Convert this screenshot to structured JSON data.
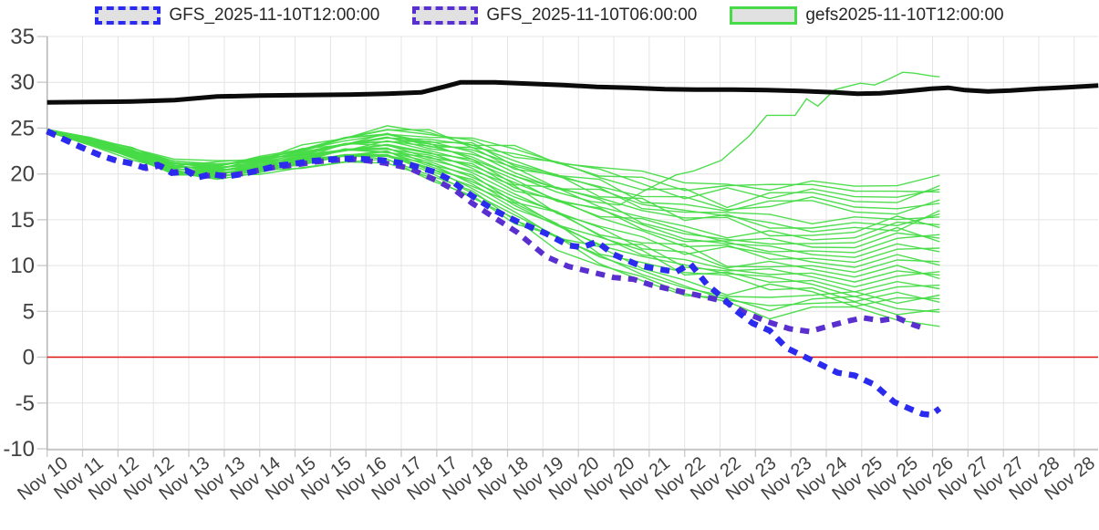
{
  "legend": {
    "items": [
      {
        "label": "GFS_2025-11-10T12:00:00",
        "swatch_style": "border:4px dashed #2b2bef;background:#e1e1e1;"
      },
      {
        "label": "GFS_2025-11-10T06:00:00",
        "swatch_style": "border:4px dashed #5a2fd0;background:#e1e1e1;"
      },
      {
        "label": "gefs2025-11-10T12:00:00",
        "swatch_style": "border:3px solid #47db47;background:#e1e1e1;width:68px;height:14px;"
      }
    ]
  },
  "chart_data": {
    "type": "line",
    "title": "",
    "x_axis": {
      "tick_labels": [
        "Nov 10",
        "Nov 11",
        "Nov 12",
        "Nov 12",
        "Nov 13",
        "Nov 13",
        "Nov 14",
        "Nov 15",
        "Nov 15",
        "Nov 16",
        "Nov 17",
        "Nov 17",
        "Nov 18",
        "Nov 18",
        "Nov 19",
        "Nov 20",
        "Nov 20",
        "Nov 21",
        "Nov 22",
        "Nov 22",
        "Nov 23",
        "Nov 23",
        "Nov 24",
        "Nov 25",
        "Nov 25",
        "Nov 26",
        "Nov 27",
        "Nov 27",
        "Nov 28",
        "Nov 28"
      ],
      "tick_interval_days": 0.625,
      "label_rotation_deg": -38
    },
    "y_axis": {
      "tick_labels": [
        "35",
        "30",
        "25",
        "20",
        "15",
        "10",
        "5",
        "0",
        "-5",
        "-10"
      ],
      "tick_values": [
        35,
        30,
        25,
        20,
        15,
        10,
        5,
        0,
        -5,
        -10
      ],
      "min": -10,
      "max": 35,
      "grid": true
    },
    "zero_line": {
      "value": 0,
      "color": "#e01212"
    },
    "series": [
      {
        "name": "upper-bound-black-line",
        "legend": null,
        "color": "#0b0b0b",
        "width": 5,
        "style": "solid",
        "points": [
          [
            0,
            27.8
          ],
          [
            0.75,
            27.85
          ],
          [
            1.5,
            27.9
          ],
          [
            2.25,
            28.05
          ],
          [
            3.0,
            28.45
          ],
          [
            3.75,
            28.55
          ],
          [
            4.5,
            28.6
          ],
          [
            5.25,
            28.65
          ],
          [
            6.0,
            28.75
          ],
          [
            6.6,
            28.9
          ],
          [
            7.0,
            29.5
          ],
          [
            7.3,
            30.0
          ],
          [
            7.9,
            30.0
          ],
          [
            8.5,
            29.85
          ],
          [
            9.1,
            29.7
          ],
          [
            9.7,
            29.5
          ],
          [
            10.3,
            29.4
          ],
          [
            10.9,
            29.25
          ],
          [
            11.5,
            29.2
          ],
          [
            12.1,
            29.2
          ],
          [
            12.7,
            29.15
          ],
          [
            13.3,
            29.05
          ],
          [
            13.9,
            28.9
          ],
          [
            14.3,
            28.75
          ],
          [
            14.7,
            28.8
          ],
          [
            15.1,
            29.0
          ],
          [
            15.6,
            29.3
          ],
          [
            15.9,
            29.4
          ],
          [
            16.2,
            29.15
          ],
          [
            16.6,
            29.0
          ],
          [
            17.0,
            29.1
          ],
          [
            17.5,
            29.3
          ],
          [
            18.0,
            29.45
          ],
          [
            18.55,
            29.65
          ]
        ]
      },
      {
        "name": "GFS_2025-11-10T06:00:00",
        "legend": "GFS_2025-11-10T06:00:00",
        "color": "#5a2fd0",
        "width": 6,
        "style": "dashed",
        "points": [
          [
            0,
            24.6
          ],
          [
            0.3,
            23.8
          ],
          [
            0.65,
            22.8
          ],
          [
            1.0,
            21.9
          ],
          [
            1.25,
            21.4
          ],
          [
            1.5,
            21.1
          ],
          [
            1.75,
            20.6
          ],
          [
            2.0,
            20.9
          ],
          [
            2.25,
            20.1
          ],
          [
            2.5,
            20.3
          ],
          [
            2.7,
            19.7
          ],
          [
            2.95,
            19.9
          ],
          [
            3.2,
            19.8
          ],
          [
            3.5,
            20.1
          ],
          [
            3.8,
            20.5
          ],
          [
            4.1,
            20.8
          ],
          [
            4.4,
            21.0
          ],
          [
            4.7,
            21.3
          ],
          [
            5.05,
            21.5
          ],
          [
            5.45,
            21.6
          ],
          [
            5.95,
            21.2
          ],
          [
            6.4,
            20.6
          ],
          [
            6.9,
            19.2
          ],
          [
            7.2,
            18.2
          ],
          [
            7.5,
            16.8
          ],
          [
            7.9,
            15.2
          ],
          [
            8.3,
            13.6
          ],
          [
            8.8,
            11.0
          ],
          [
            9.2,
            9.9
          ],
          [
            9.6,
            9.3
          ],
          [
            10.0,
            8.7
          ],
          [
            10.35,
            8.5
          ],
          [
            10.65,
            7.9
          ],
          [
            11.0,
            7.4
          ],
          [
            11.45,
            6.8
          ],
          [
            11.95,
            6.1
          ],
          [
            12.3,
            4.9
          ],
          [
            12.7,
            3.9
          ],
          [
            13.1,
            3.1
          ],
          [
            13.45,
            2.8
          ],
          [
            13.8,
            3.4
          ],
          [
            14.1,
            3.9
          ],
          [
            14.4,
            4.3
          ],
          [
            14.7,
            4.0
          ],
          [
            15.0,
            4.3
          ],
          [
            15.3,
            3.5
          ],
          [
            15.5,
            3.1
          ]
        ]
      },
      {
        "name": "GFS_2025-11-10T12:00:00",
        "legend": "GFS_2025-11-10T12:00:00",
        "color": "#2b2bef",
        "width": 6.5,
        "style": "dashed",
        "points": [
          [
            0,
            24.7
          ],
          [
            0.25,
            23.9
          ],
          [
            0.6,
            22.9
          ],
          [
            0.95,
            22.0
          ],
          [
            1.2,
            21.5
          ],
          [
            1.45,
            21.2
          ],
          [
            1.7,
            20.7
          ],
          [
            1.95,
            21.0
          ],
          [
            2.2,
            20.1
          ],
          [
            2.45,
            20.4
          ],
          [
            2.65,
            19.6
          ],
          [
            2.9,
            20.0
          ],
          [
            3.15,
            19.7
          ],
          [
            3.45,
            20.0
          ],
          [
            3.75,
            20.4
          ],
          [
            4.05,
            20.9
          ],
          [
            4.35,
            21.1
          ],
          [
            4.65,
            21.4
          ],
          [
            5.0,
            21.6
          ],
          [
            5.4,
            21.7
          ],
          [
            5.9,
            21.5
          ],
          [
            6.35,
            21.1
          ],
          [
            6.85,
            20.2
          ],
          [
            7.1,
            19.4
          ],
          [
            7.5,
            17.6
          ],
          [
            7.9,
            16.0
          ],
          [
            8.3,
            14.8
          ],
          [
            8.8,
            13.5
          ],
          [
            9.2,
            12.2
          ],
          [
            9.45,
            12.0
          ],
          [
            9.7,
            12.6
          ],
          [
            10.0,
            11.2
          ],
          [
            10.45,
            10.0
          ],
          [
            10.8,
            9.6
          ],
          [
            11.1,
            9.3
          ],
          [
            11.35,
            10.2
          ],
          [
            11.65,
            7.9
          ],
          [
            11.9,
            6.6
          ],
          [
            12.15,
            5.1
          ],
          [
            12.45,
            3.7
          ],
          [
            12.75,
            2.9
          ],
          [
            13.05,
            1.0
          ],
          [
            13.35,
            0.1
          ],
          [
            13.65,
            -0.8
          ],
          [
            13.95,
            -1.7
          ],
          [
            14.25,
            -2.0
          ],
          [
            14.6,
            -3.0
          ],
          [
            14.95,
            -4.9
          ],
          [
            15.25,
            -5.7
          ],
          [
            15.45,
            -6.2
          ],
          [
            15.6,
            -6.3
          ],
          [
            15.75,
            -5.6
          ]
        ]
      }
    ],
    "ensemble": {
      "name": "gefs2025-11-10T12:00:00",
      "legend": "gefs2025-11-10T12:00:00",
      "color": "#47db47",
      "width": 1.4,
      "n_members": 30,
      "d": [
        0,
        0.75,
        1.5,
        2.25,
        3,
        3.75,
        4.5,
        5.25,
        6,
        6.75,
        7.5,
        8.25,
        9,
        9.75,
        10.5,
        11.25,
        12,
        12.75,
        13.5,
        14.25,
        15,
        15.75
      ],
      "median": [
        24.7,
        23.6,
        22.3,
        20.7,
        20.4,
        21.0,
        21.9,
        22.8,
        23.2,
        22.2,
        20.6,
        18.9,
        17.2,
        15.6,
        14.2,
        13.0,
        12.4,
        12.1,
        12.0,
        12.0,
        12.1,
        12.2
      ],
      "spread": [
        0.12,
        0.35,
        0.55,
        0.65,
        0.75,
        0.85,
        0.95,
        1.15,
        1.7,
        2.4,
        3.3,
        4.0,
        4.6,
        5.2,
        5.6,
        6.1,
        6.4,
        6.7,
        6.9,
        7.1,
        7.3,
        7.5
      ],
      "member_offsets": [
        -1.05,
        -0.98,
        -0.9,
        -0.83,
        -0.76,
        -0.69,
        -0.62,
        -0.55,
        -0.48,
        -0.41,
        -0.34,
        -0.27,
        -0.2,
        -0.13,
        -0.06,
        0.01,
        0.08,
        0.15,
        0.22,
        0.3,
        0.37,
        0.44,
        0.52,
        0.59,
        0.66,
        0.74,
        0.81,
        0.89,
        0.96
      ],
      "outlier": {
        "d": [
          0,
          0.75,
          1.5,
          2.25,
          3,
          3.75,
          4.5,
          5.25,
          6,
          6.75,
          7.5,
          8.25,
          9,
          9.6,
          10.1,
          10.55,
          11.1,
          11.4,
          11.9,
          12.4,
          12.7,
          13.2,
          13.4,
          13.6,
          13.9,
          14.35,
          14.6,
          14.8,
          15.1,
          15.3,
          15.6,
          15.75
        ],
        "v": [
          24.8,
          23.8,
          22.6,
          21.2,
          20.9,
          21.7,
          22.6,
          23.6,
          24.3,
          23.3,
          21.6,
          19.8,
          18.0,
          17.0,
          16.6,
          18.2,
          19.9,
          20.3,
          21.5,
          24.2,
          26.4,
          26.4,
          28.2,
          27.4,
          29.2,
          29.9,
          29.7,
          30.2,
          31.1,
          31.0,
          30.7,
          30.6
        ]
      }
    }
  }
}
